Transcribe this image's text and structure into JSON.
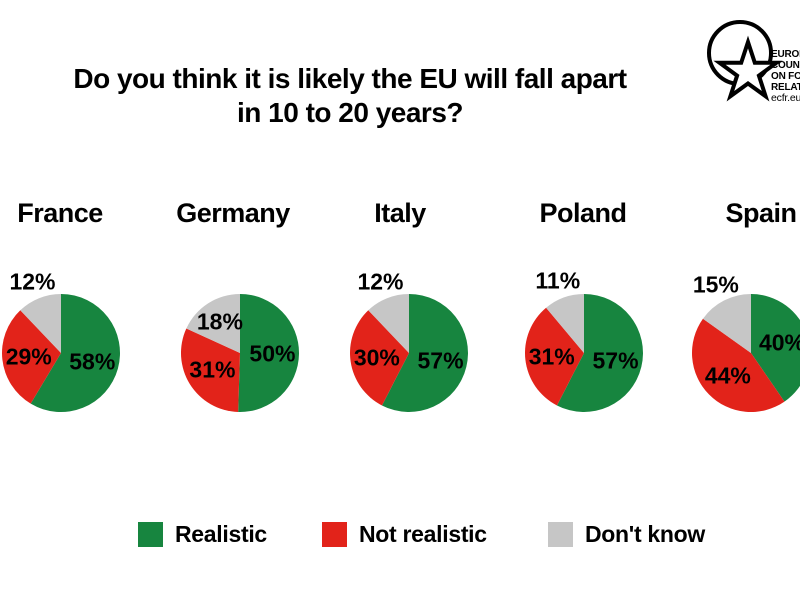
{
  "title": {
    "line1": "Do you think it is likely the EU will fall apart",
    "line2": "in 10 to 20 years?"
  },
  "logo": {
    "org_lines": [
      "EUROPEAN",
      "COUNCIL",
      "ON FOREIGN",
      "RELATIONS"
    ],
    "url": "ecfr.eu"
  },
  "chart_data": {
    "type": "pie",
    "title": "Do you think it is likely the EU will fall apart in 10 to 20 years?",
    "series_labels": [
      "Realistic",
      "Not realistic",
      "Don't know"
    ],
    "colors": {
      "Realistic": "#17853F",
      "Not realistic": "#E2231A",
      "Don't know": "#C6C6C6"
    },
    "value_suffix": "%",
    "legend_position": "bottom",
    "charts": [
      {
        "category": "France",
        "values": [
          58,
          29,
          12
        ]
      },
      {
        "category": "Germany",
        "values": [
          50,
          31,
          18
        ]
      },
      {
        "category": "Italy",
        "values": [
          57,
          30,
          12
        ]
      },
      {
        "category": "Poland",
        "values": [
          57,
          31,
          11
        ]
      },
      {
        "category": "Spain",
        "values": [
          40,
          44,
          15
        ]
      }
    ]
  }
}
